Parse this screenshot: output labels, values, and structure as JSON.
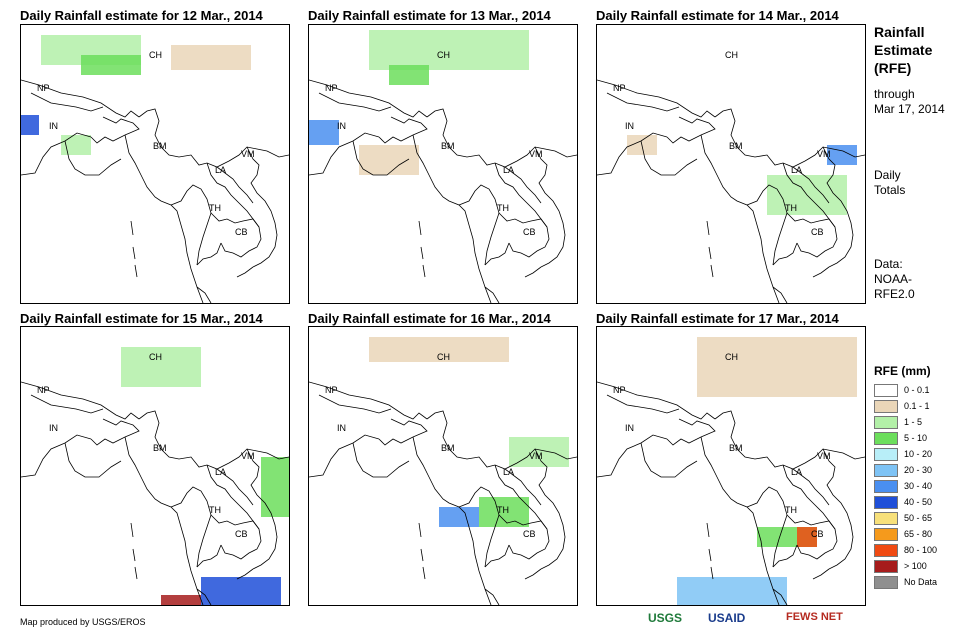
{
  "panels": [
    {
      "title": "Daily Rainfall estimate for 12 Mar., 2014"
    },
    {
      "title": "Daily Rainfall estimate for 13 Mar., 2014"
    },
    {
      "title": "Daily Rainfall estimate for 14 Mar., 2014"
    },
    {
      "title": "Daily Rainfall estimate for 15 Mar., 2014"
    },
    {
      "title": "Daily Rainfall estimate for 16 Mar., 2014"
    },
    {
      "title": "Daily Rainfall estimate for 17 Mar., 2014"
    }
  ],
  "country_labels": {
    "ch": "CH",
    "np": "NP",
    "in": "IN",
    "bm": "BM",
    "la": "LA",
    "vm": "VM",
    "th": "TH",
    "cb": "CB"
  },
  "sidebar": {
    "title_lines": [
      "Rainfall",
      "Estimate",
      "(RFE)"
    ],
    "through_label": "through",
    "through_date": "Mar 17, 2014",
    "period_lines": [
      "Daily",
      "Totals"
    ],
    "data_lines": [
      "Data:",
      "NOAA-",
      "RFE2.0"
    ]
  },
  "legend": {
    "title": "RFE (mm)",
    "items": [
      {
        "label": "0 - 0.1",
        "color": "#ffffff"
      },
      {
        "label": "0.1 - 1",
        "color": "#ead6b8"
      },
      {
        "label": "1 - 5",
        "color": "#b3f0a8"
      },
      {
        "label": "5 - 10",
        "color": "#6cde5c"
      },
      {
        "label": "10 - 20",
        "color": "#b8eef8"
      },
      {
        "label": "20 - 30",
        "color": "#7ec3f5"
      },
      {
        "label": "30 - 40",
        "color": "#4a8ff0"
      },
      {
        "label": "40 - 50",
        "color": "#1f4fd8"
      },
      {
        "label": "50 - 65",
        "color": "#f7e07a"
      },
      {
        "label": "65 - 80",
        "color": "#f59a1c"
      },
      {
        "label": "80 - 100",
        "color": "#f04a12"
      },
      {
        "label": "> 100",
        "color": "#a61c1c"
      },
      {
        "label": "No Data",
        "color": "#8f8f8f"
      }
    ]
  },
  "footer": {
    "credit": "Map produced by USGS/EROS",
    "logos": [
      "USGS",
      "USAID",
      "FEWS NET"
    ]
  }
}
